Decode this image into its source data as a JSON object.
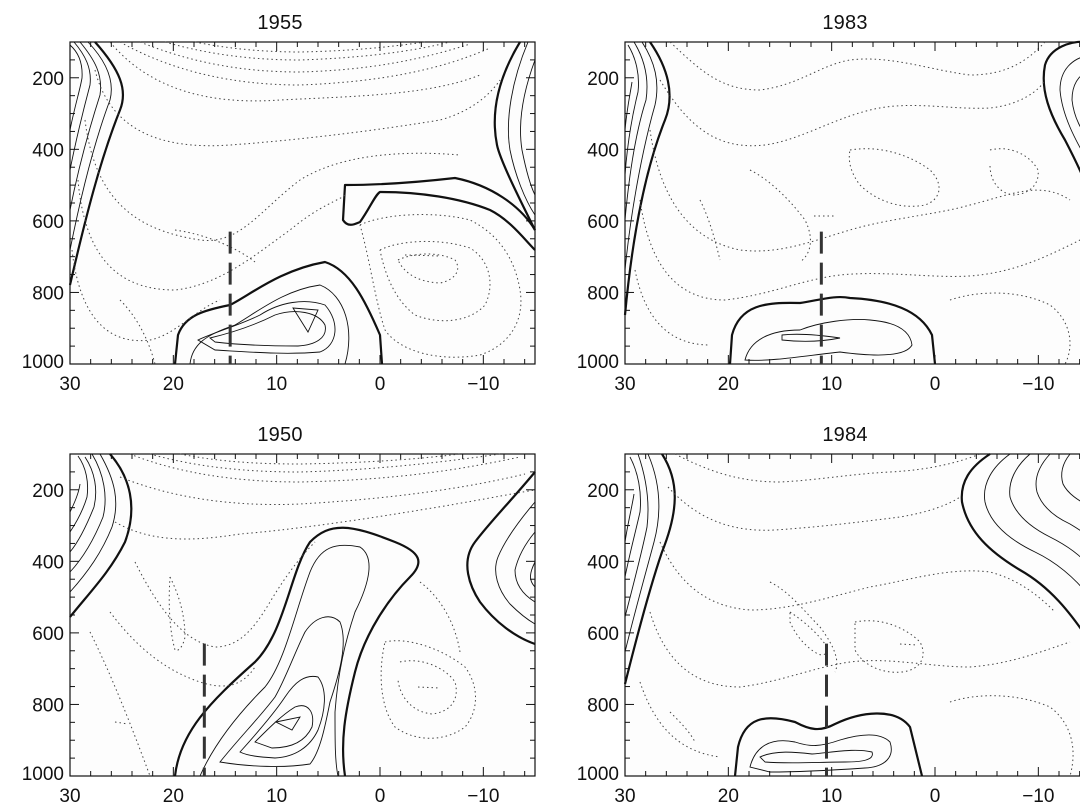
{
  "chart_data": [
    {
      "type": "contour",
      "title": "1955",
      "x_ticks": [
        "30",
        "20",
        "10",
        "0",
        "−10"
      ],
      "y_ticks": [
        "200",
        "400",
        "600",
        "800",
        "1000"
      ],
      "xlim": [
        30,
        -15
      ],
      "ylim": [
        100,
        1000
      ],
      "y_reversed": true,
      "reference_line_x": 14.5,
      "reference_line_range": [
        630,
        1000
      ],
      "max_positive_center": [
        8,
        880
      ],
      "contour_styles": {
        "negative": "dotted",
        "zero": "thick solid",
        "positive": "thin solid"
      }
    },
    {
      "type": "contour",
      "title": "1983",
      "x_ticks": [
        "30",
        "20",
        "10",
        "0",
        "−10"
      ],
      "y_ticks": [
        "200",
        "400",
        "600",
        "800",
        "1000"
      ],
      "xlim": [
        30,
        -15
      ],
      "ylim": [
        100,
        1000
      ],
      "y_reversed": true,
      "reference_line_x": 11,
      "reference_line_range": [
        630,
        1000
      ],
      "max_positive_center": [
        13,
        925
      ],
      "contour_styles": {
        "negative": "dotted",
        "zero": "thick solid",
        "positive": "thin solid"
      }
    },
    {
      "type": "contour",
      "title": "1950",
      "x_ticks": [
        "30",
        "20",
        "10",
        "0",
        "−10"
      ],
      "y_ticks": [
        "200",
        "400",
        "600",
        "800",
        "1000"
      ],
      "xlim": [
        30,
        -15
      ],
      "ylim": [
        100,
        1000
      ],
      "y_reversed": true,
      "reference_line_x": 17,
      "reference_line_range": [
        630,
        1000
      ],
      "max_positive_center": [
        9,
        850
      ],
      "contour_styles": {
        "negative": "dotted",
        "zero": "thick solid",
        "positive": "thin solid"
      }
    },
    {
      "type": "contour",
      "title": "1984",
      "x_ticks": [
        "30",
        "20",
        "10",
        "0",
        "−10"
      ],
      "y_ticks": [
        "200",
        "400",
        "600",
        "800",
        "1000"
      ],
      "xlim": [
        30,
        -15
      ],
      "ylim": [
        100,
        1000
      ],
      "y_reversed": true,
      "reference_line_x": 10.5,
      "reference_line_range": [
        630,
        1000
      ],
      "max_positive_center": [
        11,
        935
      ],
      "contour_styles": {
        "negative": "dotted",
        "zero": "thick solid",
        "positive": "thin solid"
      }
    }
  ]
}
